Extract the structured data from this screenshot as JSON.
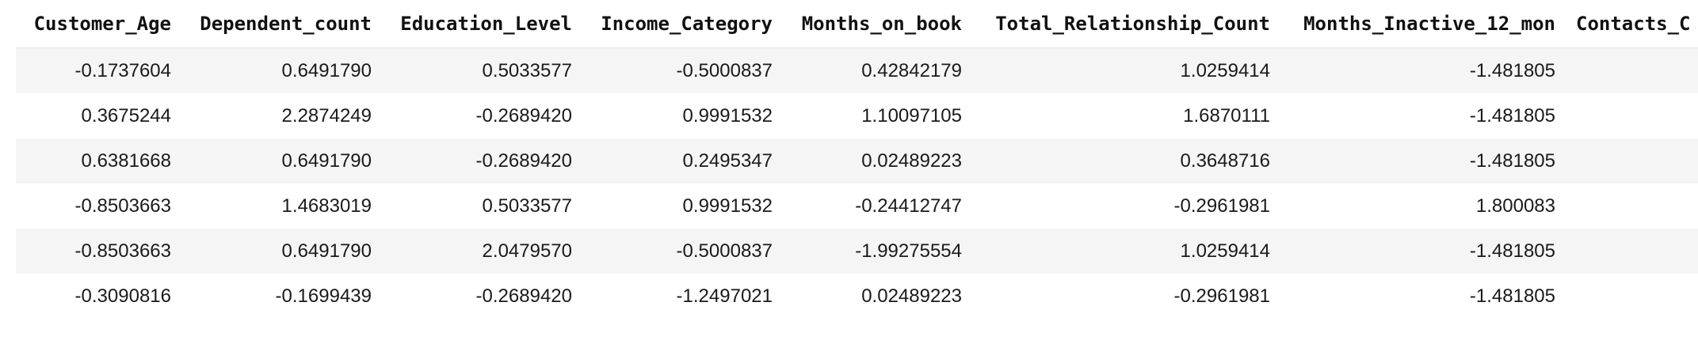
{
  "table": {
    "columns": [
      "Customer_Age",
      "Dependent_count",
      "Education_Level",
      "Income_Category",
      "Months_on_book",
      "Total_Relationship_Count",
      "Months_Inactive_12_mon",
      "Contacts_C"
    ],
    "rows": [
      [
        "-0.1737604",
        "0.6491790",
        "0.5033577",
        "-0.5000837",
        "0.42842179",
        "1.0259414",
        "-1.481805",
        ""
      ],
      [
        "0.3675244",
        "2.2874249",
        "-0.2689420",
        "0.9991532",
        "1.10097105",
        "1.6870111",
        "-1.481805",
        ""
      ],
      [
        "0.6381668",
        "0.6491790",
        "-0.2689420",
        "0.2495347",
        "0.02489223",
        "0.3648716",
        "-1.481805",
        ""
      ],
      [
        "-0.8503663",
        "1.4683019",
        "0.5033577",
        "0.9991532",
        "-0.24412747",
        "-0.2961981",
        "1.800083",
        ""
      ],
      [
        "-0.8503663",
        "0.6491790",
        "2.0479570",
        "-0.5000837",
        "-1.99275554",
        "1.0259414",
        "-1.481805",
        ""
      ],
      [
        "-0.3090816",
        "-0.1699439",
        "-0.2689420",
        "-1.2497021",
        "0.02489223",
        "-0.2961981",
        "-1.481805",
        ""
      ]
    ]
  }
}
